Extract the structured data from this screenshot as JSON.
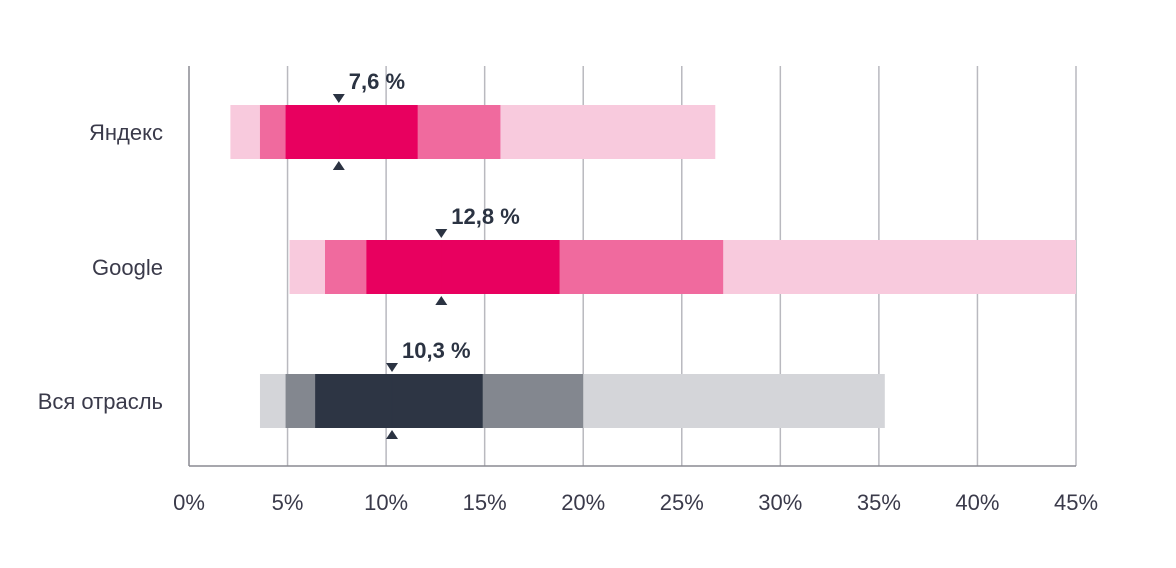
{
  "chart_data": {
    "type": "bar",
    "orientation": "horizontal",
    "xlim": [
      0,
      45
    ],
    "x_ticks": [
      0,
      5,
      10,
      15,
      20,
      25,
      30,
      35,
      40,
      45
    ],
    "x_tick_labels": [
      "0%",
      "5%",
      "10%",
      "15%",
      "20%",
      "25%",
      "30%",
      "35%",
      "40%",
      "45%"
    ],
    "grid": true,
    "categories": [
      "Яндекс",
      "Google",
      "Вся отрасль"
    ],
    "series": [
      {
        "category": "Яндекс",
        "ranges": [
          [
            2.1,
            26.7
          ],
          [
            3.6,
            15.8
          ],
          [
            4.9,
            11.6
          ]
        ],
        "marker": 7.6,
        "marker_label": "7,6 %",
        "colors": [
          "#f8cadd",
          "#f06a9e",
          "#e8005f"
        ]
      },
      {
        "category": "Google",
        "ranges": [
          [
            5.1,
            45
          ],
          [
            6.9,
            27.1
          ],
          [
            9.0,
            18.8
          ]
        ],
        "marker": 12.8,
        "marker_label": "12,8 %",
        "colors": [
          "#f8cadd",
          "#f06a9e",
          "#e8005f"
        ]
      },
      {
        "category": "Вся отрасль",
        "ranges": [
          [
            3.6,
            35.3
          ],
          [
            4.9,
            20.0
          ],
          [
            6.4,
            14.9
          ]
        ],
        "marker": 10.3,
        "marker_label": "10,3 %",
        "colors": [
          "#d4d5d9",
          "#83878f",
          "#2d3544"
        ]
      }
    ],
    "marker_color": "#2b3342"
  }
}
